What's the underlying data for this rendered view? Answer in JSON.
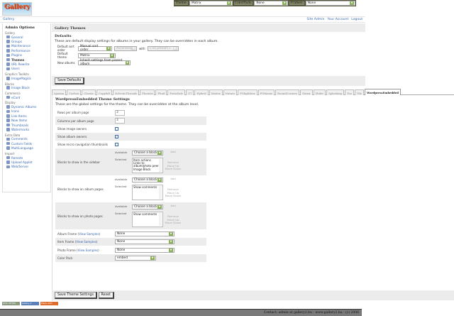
{
  "topbar": {
    "theme_label": "Theme:",
    "theme_value": "Matrix",
    "colorpack_label": "ColorPack:",
    "colorpack_value": "None",
    "frames_label": "Frames:",
    "frames_value": "None"
  },
  "logo_text": "Gallery",
  "breadcrumb": "Gallery",
  "toplinks": [
    "Site Admin",
    "Your Account",
    "Logout"
  ],
  "sidebar": {
    "title": "Admin Options",
    "groups": [
      {
        "label": "Gallery",
        "items": [
          "General",
          "Groups",
          "Maintenance",
          "Performance",
          "Plugins",
          "Themes",
          "URL Rewrite",
          "Users"
        ]
      },
      {
        "label": "Graphics Toolkits",
        "items": [
          "ImageMagick"
        ]
      },
      {
        "label": "Blocks",
        "items": [
          "Image Block"
        ]
      },
      {
        "label": "Commerce",
        "items": [
          "eCard"
        ]
      },
      {
        "label": "Display",
        "items": [
          "Dynamic Albums",
          "Icons",
          "Link Items",
          "New Items",
          "Thumbnails",
          "Watermarks"
        ]
      },
      {
        "label": "Extra Data",
        "items": [
          "Comments",
          "Custom Fields",
          "MultiLanguage"
        ]
      },
      {
        "label": "Import",
        "items": [
          "Remote",
          "Upload Applet",
          "Web/Server"
        ]
      }
    ],
    "current": "Themes"
  },
  "main": {
    "title": "Gallery Themes",
    "defaults_title": "Defaults",
    "defaults_desc": "These are default display settings for albums in your gallery. They can be overridden in each album.",
    "sort_label": "Default sort order",
    "sort_value": "Manual sort order",
    "direction_value": "Ascending",
    "with_label": "with",
    "presort_value": "« no presort »",
    "theme_label": "Default theme",
    "theme_value": "Matrix",
    "new_albums_label": "New albums",
    "new_albums_value": "Inherit settings from parent album",
    "save_defaults": "Save Defaults"
  },
  "tabs": [
    "Ajaxian",
    "Carbon",
    "Classic",
    "Copyleft",
    "EclecticThreads",
    "Floatrix",
    "Fluid",
    "PortaSale",
    "G1",
    "Hybrid",
    "Matrix",
    "Nature",
    "PGlightbox",
    "PGtheme",
    "RoundCorners",
    "Siriux",
    "Slider",
    "Splashing",
    "Tea",
    "Tile",
    "WordpressEmbedded"
  ],
  "active_tab": "WordpressEmbedded",
  "theme_settings": {
    "title": "WordpressEmbedded Theme Settings",
    "desc": "These are the global settings for the theme. They can be overridden at the album level.",
    "rows_label": "Rows per album page",
    "rows_value": "3",
    "cols_label": "Columns per album page",
    "cols_value": "3",
    "image_owners_label": "Show image owners",
    "image_owners": false,
    "album_owners_label": "Show album owners",
    "album_owners": true,
    "micro_label": "Show micro navigation thumbnails",
    "micro": false,
    "available_label": "Available",
    "selected_label": "Selected",
    "choose": "Choose a block",
    "add": "Add",
    "remove": "Remove",
    "move_up": "Move Up",
    "move_down": "Move Down",
    "sidebar_label": "Blocks to show in the sidebar",
    "sidebar_selected": "Item actions\nLinks to album/photo peers\nImage Block",
    "album_label": "Blocks to show on album pages",
    "album_selected": "Show comments",
    "photo_label": "Blocks to show on photo pages",
    "photo_selected": "Show comments",
    "album_frame_label": "Album Frame (",
    "item_frame_label": "Item Frame (",
    "photo_frame_label": "Photo Frame (",
    "view_samples": "View Samples",
    "close_paren": ")",
    "album_frame": "None",
    "item_frame": "None",
    "photo_frame": "None",
    "color_pack_label": "Color Pack",
    "color_pack": "embed",
    "save": "Save Theme Settings",
    "reset": "Reset"
  },
  "badges": [
    "W3C XHTML 1.0",
    "Gallery 2",
    "Made with Gallery"
  ],
  "footer": "Contact: admin at gallery2.hu - www.gallery2.hu - (c) 2006",
  "colors": {
    "link": "#3868b0",
    "topbar": "#55583f",
    "panel": "#ececec",
    "footer": "#7a7a7a"
  }
}
